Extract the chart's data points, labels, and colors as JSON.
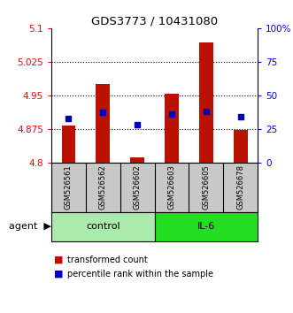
{
  "title": "GDS3773 / 10431080",
  "samples": [
    "GSM526561",
    "GSM526562",
    "GSM526602",
    "GSM526603",
    "GSM526605",
    "GSM526678"
  ],
  "groups": [
    "control",
    "control",
    "control",
    "IL-6",
    "IL-6",
    "IL-6"
  ],
  "red_values": [
    4.883,
    4.975,
    4.812,
    4.953,
    5.068,
    4.872
  ],
  "blue_percentiles": [
    33,
    37,
    28,
    36,
    38,
    34
  ],
  "ylim_left": [
    4.8,
    5.1
  ],
  "ylim_right": [
    0,
    100
  ],
  "yticks_left": [
    4.8,
    4.875,
    4.95,
    5.025,
    5.1
  ],
  "yticks_right": [
    0,
    25,
    50,
    75,
    100
  ],
  "ytick_labels_left": [
    "4.8",
    "4.875",
    "4.95",
    "5.025",
    "5.1"
  ],
  "ytick_labels_right": [
    "0",
    "25",
    "50",
    "75",
    "100%"
  ],
  "group_spans": [
    [
      "control",
      0,
      2
    ],
    [
      "IL-6",
      3,
      5
    ]
  ],
  "group_colors": {
    "control": "#AAEAAA",
    "IL-6": "#22DD22"
  },
  "bar_color": "#BB1100",
  "dot_color": "#0000BB",
  "background_sample": "#C8C8C8",
  "legend_labels": [
    "transformed count",
    "percentile rank within the sample"
  ],
  "agent_label": "agent"
}
